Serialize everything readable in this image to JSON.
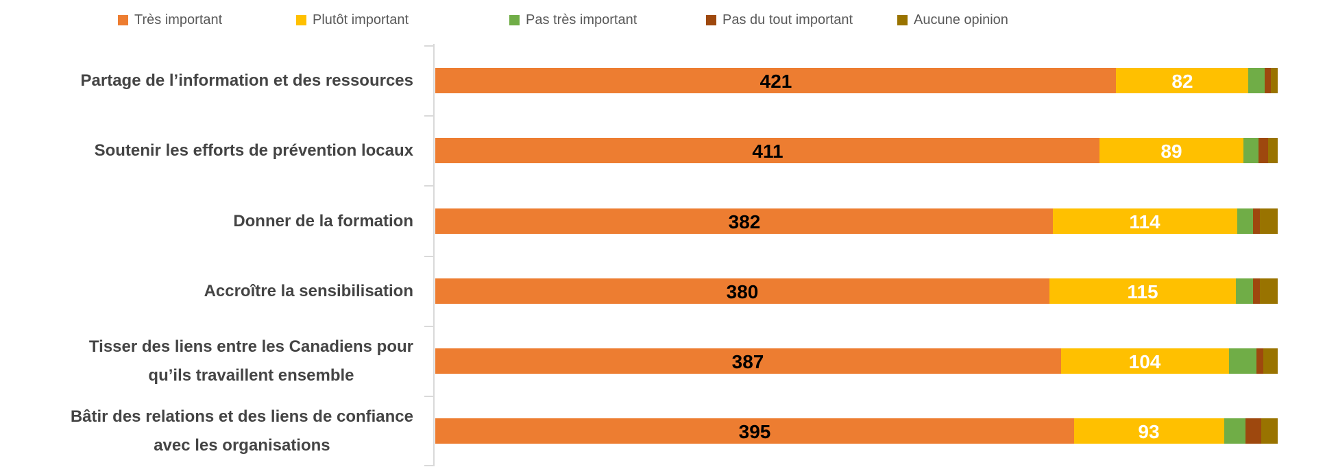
{
  "chart_data": {
    "type": "bar",
    "orientation": "horizontal",
    "stacked": true,
    "title": "",
    "legend_position": "top",
    "value_axis_hidden": true,
    "grid": false,
    "xlim": [
      0,
      521
    ],
    "categories": [
      "Partage de l’information et des ressources",
      "Soutenir les efforts de prévention locaux",
      "Donner de la formation",
      "Accroître la sensibilisation",
      "Tisser des liens entre les Canadiens pour qu’ils travaillent ensemble",
      "Bâtir des relations et des liens de confiance avec les organisations"
    ],
    "category_lines": [
      [
        "Partage de l’information et des ressources"
      ],
      [
        "Soutenir les efforts de prévention locaux"
      ],
      [
        "Donner de la formation"
      ],
      [
        "Accroître la sensibilisation"
      ],
      [
        "Tisser des liens entre les Canadiens pour",
        "qu’ils travaillent ensemble"
      ],
      [
        "Bâtir des relations et des liens de confiance",
        "avec les organisations"
      ]
    ],
    "series": [
      {
        "name": "Très important",
        "color": "#ED7D31",
        "show_labels": true,
        "label_color": "#000000",
        "values": [
          421,
          411,
          382,
          380,
          387,
          395
        ]
      },
      {
        "name": "Plutôt important",
        "color": "#FFC000",
        "show_labels": true,
        "label_color": "#FFFFFF",
        "values": [
          82,
          89,
          114,
          115,
          104,
          93
        ]
      },
      {
        "name": "Pas très important",
        "color": "#70AD47",
        "show_labels": false,
        "values": [
          10,
          9,
          10,
          11,
          17,
          13
        ]
      },
      {
        "name": "Pas du tout important",
        "color": "#9E480E",
        "show_labels": false,
        "values": [
          4,
          6,
          4,
          4,
          4,
          10
        ]
      },
      {
        "name": "Aucune opinion",
        "color": "#997300",
        "show_labels": false,
        "values": [
          4,
          6,
          11,
          11,
          9,
          10
        ]
      }
    ],
    "colors": {
      "axis": "#D9D9D9",
      "legend_text": "#595959",
      "category_text": "#444444"
    }
  }
}
